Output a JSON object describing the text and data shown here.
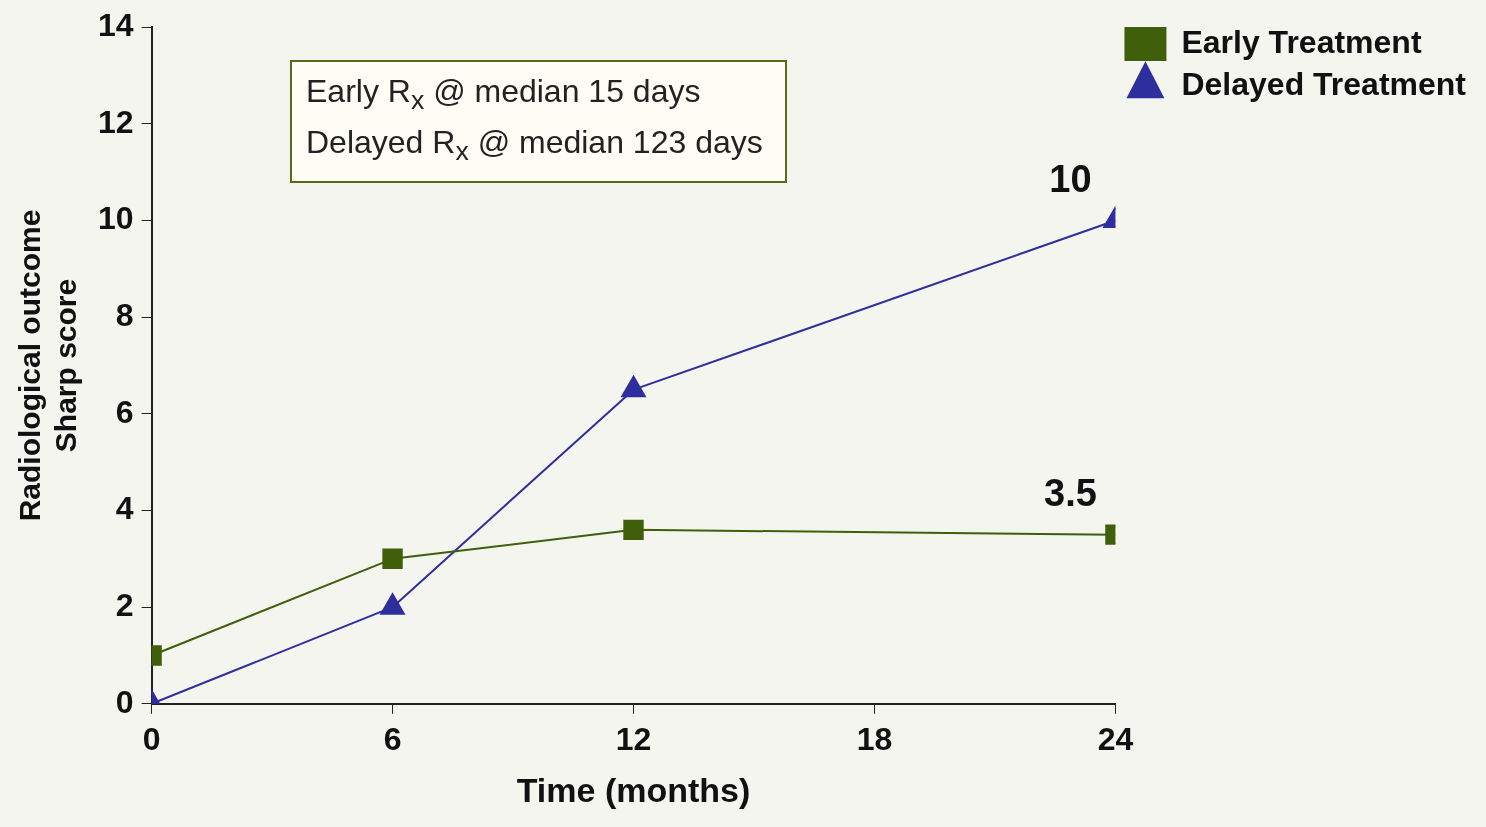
{
  "chart_data": {
    "type": "line",
    "xlabel": "Time (months)",
    "ylabel": "Radiological outcome\nSharp score",
    "x": [
      0,
      6,
      12,
      24
    ],
    "xlim": [
      0,
      24
    ],
    "xticks": [
      0,
      6,
      12,
      18,
      24
    ],
    "ylim": [
      0,
      14
    ],
    "yticks": [
      0,
      2,
      4,
      6,
      8,
      10,
      12,
      14
    ],
    "grid": false,
    "legend": "top right",
    "annotations": [
      "Early R$_{x}$  @ median 15 days",
      "Delayed R$_{x}$ @ median 123 days"
    ],
    "series": [
      {
        "name": "Early Treatment",
        "color": "#3f5f0a",
        "marker": "square",
        "values": [
          1,
          3,
          3.6,
          3.5
        ],
        "value_labels": [
          null,
          null,
          null,
          "3.5"
        ]
      },
      {
        "name": "Delayed Treatment",
        "color": "#2e2e9e",
        "marker": "triangle",
        "values": [
          0,
          2,
          6.5,
          10
        ],
        "value_labels": [
          null,
          null,
          null,
          "10"
        ]
      }
    ]
  }
}
